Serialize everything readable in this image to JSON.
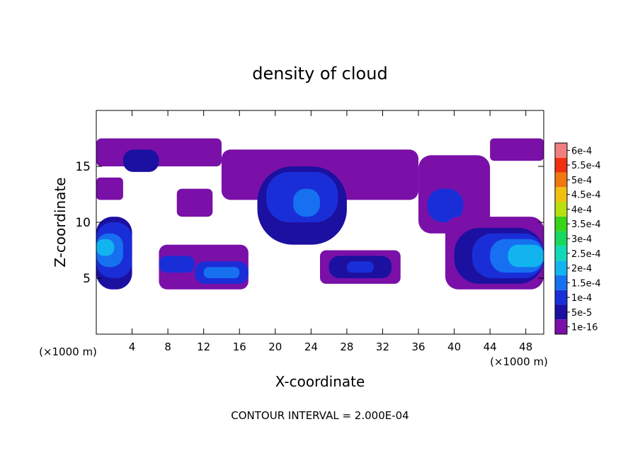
{
  "chart_data": {
    "type": "heatmap",
    "title": "density of cloud",
    "xlabel": "X-coordinate",
    "ylabel": "Z-coordinate",
    "x_unit_left": "(×1000 m)",
    "x_unit_right": "(×1000 m)",
    "footer": "CONTOUR INTERVAL = 2.000E-04",
    "xlim": [
      0,
      50
    ],
    "ylim": [
      0,
      20
    ],
    "x_ticks": [
      4,
      8,
      12,
      16,
      20,
      24,
      28,
      32,
      36,
      40,
      44,
      48
    ],
    "y_ticks": [
      5,
      10,
      15
    ],
    "colorbar": {
      "levels": [
        "1e-16",
        "5e-5",
        "1e-4",
        "1.5e-4",
        "2e-4",
        "2.5e-4",
        "3e-4",
        "3.5e-4",
        "4e-4",
        "4.5e-4",
        "5e-4",
        "5.5e-4",
        "6e-4"
      ],
      "colors": [
        "#7a10a8",
        "#1c10a0",
        "#1a2ed8",
        "#1670f0",
        "#12b4f0",
        "#12d8b8",
        "#18d860",
        "#38d418",
        "#b8e010",
        "#f0c010",
        "#f07810",
        "#f03010",
        "#f08080"
      ]
    },
    "regions": [
      {
        "x": [
          0,
          14
        ],
        "z": [
          15,
          17.5
        ],
        "level": 1
      },
      {
        "x": [
          3,
          7
        ],
        "z": [
          14.5,
          16.5
        ],
        "level": 2
      },
      {
        "x": [
          0,
          3
        ],
        "z": [
          12,
          14
        ],
        "level": 1
      },
      {
        "x": [
          9,
          13
        ],
        "z": [
          10.5,
          13
        ],
        "level": 1
      },
      {
        "x": [
          14,
          36
        ],
        "z": [
          12,
          16.5
        ],
        "level": 1
      },
      {
        "x": [
          18,
          28
        ],
        "z": [
          8,
          15
        ],
        "level": 2
      },
      {
        "x": [
          19,
          27
        ],
        "z": [
          10,
          14.5
        ],
        "level": 3
      },
      {
        "x": [
          22,
          25
        ],
        "z": [
          10.5,
          13
        ],
        "level": 4
      },
      {
        "x": [
          36,
          44
        ],
        "z": [
          9,
          16
        ],
        "level": 1
      },
      {
        "x": [
          37,
          41
        ],
        "z": [
          10,
          13
        ],
        "level": 3
      },
      {
        "x": [
          44,
          50
        ],
        "z": [
          15.5,
          17.5
        ],
        "level": 1
      },
      {
        "x": [
          0,
          4
        ],
        "z": [
          4,
          10.5
        ],
        "level": 2
      },
      {
        "x": [
          0,
          4
        ],
        "z": [
          5,
          10
        ],
        "level": 3
      },
      {
        "x": [
          0,
          3
        ],
        "z": [
          6,
          9
        ],
        "level": 4
      },
      {
        "x": [
          0,
          2
        ],
        "z": [
          7,
          8.5
        ],
        "level": 5
      },
      {
        "x": [
          7,
          17
        ],
        "z": [
          4,
          8
        ],
        "level": 1
      },
      {
        "x": [
          7,
          11
        ],
        "z": [
          5.5,
          7
        ],
        "level": 3
      },
      {
        "x": [
          11,
          17
        ],
        "z": [
          4.5,
          6.5
        ],
        "level": 3
      },
      {
        "x": [
          12,
          16
        ],
        "z": [
          5,
          6
        ],
        "level": 4
      },
      {
        "x": [
          25,
          34
        ],
        "z": [
          4.5,
          7.5
        ],
        "level": 1
      },
      {
        "x": [
          26,
          33
        ],
        "z": [
          5,
          7
        ],
        "level": 2
      },
      {
        "x": [
          28,
          31
        ],
        "z": [
          5.5,
          6.5
        ],
        "level": 3
      },
      {
        "x": [
          39,
          50
        ],
        "z": [
          4,
          10.5
        ],
        "level": 1
      },
      {
        "x": [
          40,
          50
        ],
        "z": [
          4.5,
          9.5
        ],
        "level": 2
      },
      {
        "x": [
          42,
          50
        ],
        "z": [
          5,
          9
        ],
        "level": 3
      },
      {
        "x": [
          44,
          50
        ],
        "z": [
          5.5,
          8.5
        ],
        "level": 4
      },
      {
        "x": [
          46,
          50
        ],
        "z": [
          6,
          8
        ],
        "level": 5
      }
    ]
  }
}
